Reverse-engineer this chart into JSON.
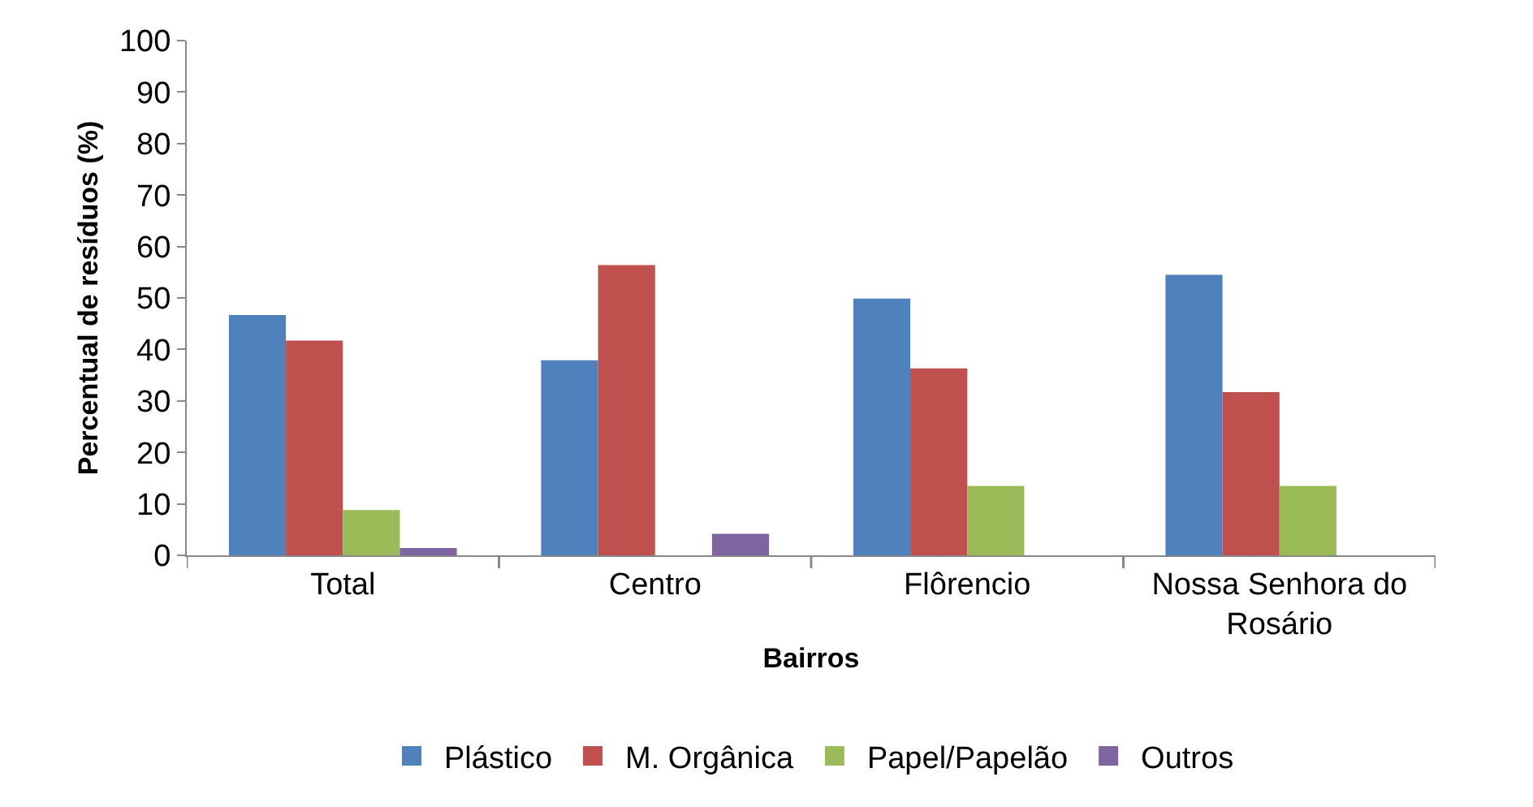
{
  "chart_data": {
    "type": "bar",
    "xlabel": "Bairros",
    "ylabel": "Percentual de resíduos (%)",
    "categories": [
      "Total",
      "Centro",
      "Flôrencio",
      "Nossa Senhora do Rosário"
    ],
    "series": [
      {
        "name": "Plástico",
        "color": "#4f81bd",
        "values": [
          46.7,
          37.9,
          49.9,
          54.5
        ]
      },
      {
        "name": "M. Orgânica",
        "color": "#c0504d",
        "values": [
          41.7,
          56.4,
          36.3,
          31.7
        ]
      },
      {
        "name": "Papel/Papelão",
        "color": "#9bbb59",
        "values": [
          8.8,
          0,
          13.5,
          13.5
        ]
      },
      {
        "name": "Outros",
        "color": "#8064a2",
        "values": [
          1.4,
          4.2,
          0,
          0
        ]
      }
    ],
    "ylim": [
      0,
      100
    ],
    "yticks": [
      0,
      10,
      20,
      30,
      40,
      50,
      60,
      70,
      80,
      90,
      100
    ],
    "grid": false,
    "legend": "bottom"
  }
}
